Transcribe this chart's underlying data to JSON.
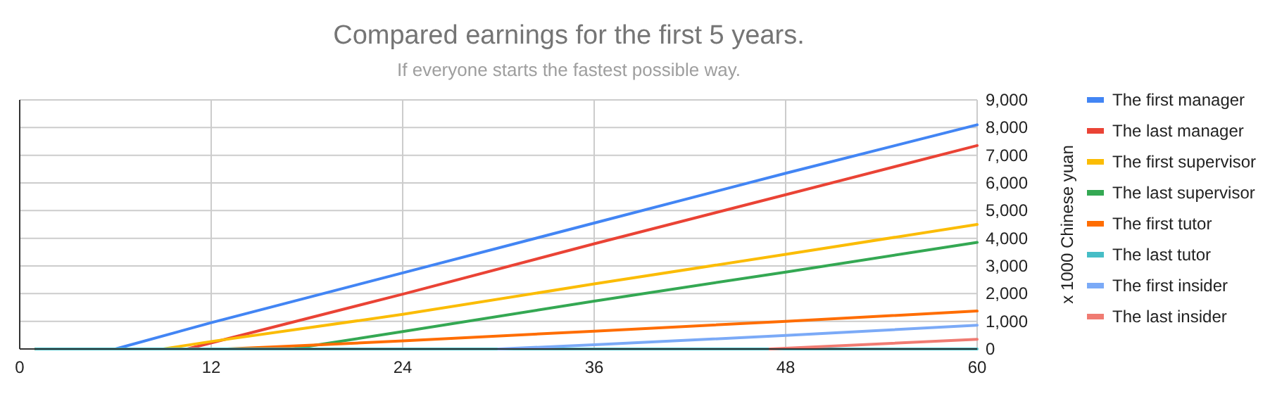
{
  "chart_data": {
    "type": "line",
    "title": "Compared earnings for the first 5 years.",
    "subtitle": "If everyone starts the fastest possible way.",
    "ylabel": "x 1000 Chinese yuan",
    "xlim": [
      0,
      60
    ],
    "xticks": [
      0,
      12,
      24,
      36,
      48,
      60
    ],
    "ylim": [
      0,
      9000
    ],
    "yticks": [
      {
        "value": 0,
        "label": "0"
      },
      {
        "value": 1000,
        "label": "1,000"
      },
      {
        "value": 2000,
        "label": "2,000"
      },
      {
        "value": 3000,
        "label": "3,000"
      },
      {
        "value": 4000,
        "label": "4,000"
      },
      {
        "value": 5000,
        "label": "5,000"
      },
      {
        "value": 6000,
        "label": "6,000"
      },
      {
        "value": 7000,
        "label": "7,000"
      },
      {
        "value": 8000,
        "label": "8,000"
      },
      {
        "value": 9000,
        "label": "9,000"
      }
    ],
    "grid": true,
    "legend": "right",
    "marker": "none",
    "line_style": "solid",
    "series": [
      {
        "name": "The first manager",
        "color": "#4285f4",
        "x": [
          1,
          6,
          12,
          24,
          36,
          48,
          60
        ],
        "values": [
          0,
          0,
          950,
          2750,
          4550,
          6350,
          8100
        ]
      },
      {
        "name": "The last manager",
        "color": "#ea4335",
        "x": [
          1,
          10.5,
          24,
          36,
          48,
          60
        ],
        "values": [
          0,
          0,
          1980,
          3800,
          5575,
          7350
        ]
      },
      {
        "name": "The first supervisor",
        "color": "#fbbc04",
        "x": [
          1,
          9,
          12,
          24,
          36,
          48,
          60
        ],
        "values": [
          0,
          0,
          270,
          1250,
          2350,
          3420,
          4500
        ]
      },
      {
        "name": "The last supervisor",
        "color": "#34a853",
        "x": [
          1,
          17,
          24,
          36,
          48,
          60
        ],
        "values": [
          0,
          0,
          630,
          1730,
          2780,
          3850
        ]
      },
      {
        "name": "The first tutor",
        "color": "#ff6d01",
        "x": [
          13,
          24,
          36,
          48,
          60
        ],
        "values": [
          0,
          290,
          645,
          1000,
          1370
        ]
      },
      {
        "name": "The last tutor",
        "color": "#46bdc6",
        "x": [
          1,
          60
        ],
        "values": [
          0,
          0
        ]
      },
      {
        "name": "The first insider",
        "color": "#7baaf7",
        "x": [
          30,
          36,
          48,
          60
        ],
        "values": [
          0,
          150,
          490,
          860
        ]
      },
      {
        "name": "The last insider",
        "color": "#f07b72",
        "x": [
          47,
          60
        ],
        "values": [
          0,
          350
        ]
      }
    ]
  }
}
